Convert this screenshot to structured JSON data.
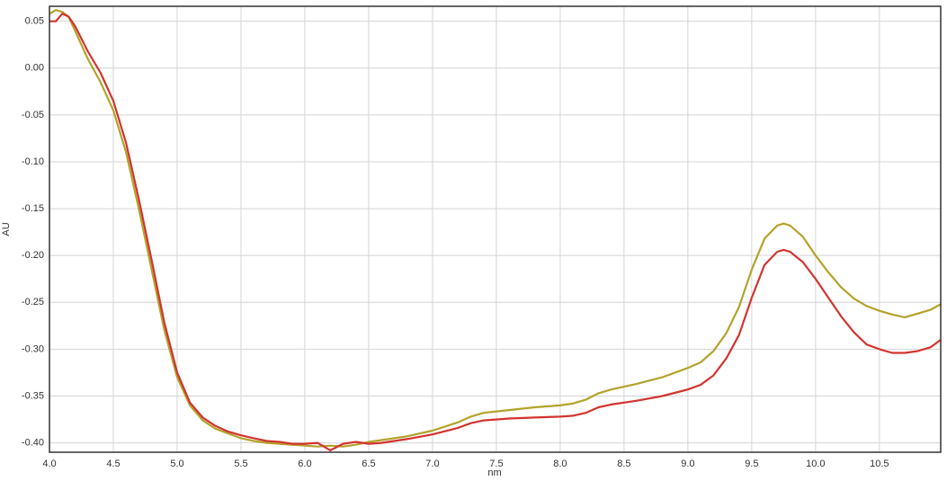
{
  "chart_data": {
    "type": "line",
    "x_label": "nm",
    "y_label": "AU",
    "x": [
      4.0,
      4.05,
      4.1,
      4.15,
      4.2,
      4.3,
      4.4,
      4.5,
      4.6,
      4.7,
      4.8,
      4.9,
      5.0,
      5.1,
      5.2,
      5.3,
      5.4,
      5.5,
      5.6,
      5.7,
      5.8,
      5.9,
      6.0,
      6.1,
      6.2,
      6.3,
      6.4,
      6.5,
      6.6,
      6.8,
      7.0,
      7.2,
      7.3,
      7.4,
      7.6,
      7.8,
      8.0,
      8.1,
      8.2,
      8.3,
      8.4,
      8.6,
      8.8,
      9.0,
      9.1,
      9.2,
      9.3,
      9.4,
      9.5,
      9.6,
      9.7,
      9.75,
      9.8,
      9.9,
      10.0,
      10.1,
      10.2,
      10.3,
      10.4,
      10.5,
      10.6,
      10.7,
      10.8,
      10.9,
      10.98
    ],
    "series": [
      {
        "color": "#b3a32a",
        "values": [
          0.058,
          0.062,
          0.06,
          0.055,
          0.04,
          0.01,
          -0.015,
          -0.045,
          -0.09,
          -0.15,
          -0.215,
          -0.28,
          -0.33,
          -0.36,
          -0.376,
          -0.385,
          -0.39,
          -0.395,
          -0.398,
          -0.4,
          -0.401,
          -0.402,
          -0.403,
          -0.404,
          -0.403,
          -0.404,
          -0.402,
          -0.399,
          -0.397,
          -0.393,
          -0.387,
          -0.378,
          -0.372,
          -0.368,
          -0.365,
          -0.362,
          -0.36,
          -0.358,
          -0.354,
          -0.347,
          -0.343,
          -0.337,
          -0.33,
          -0.32,
          -0.314,
          -0.302,
          -0.283,
          -0.255,
          -0.215,
          -0.182,
          -0.168,
          -0.166,
          -0.168,
          -0.18,
          -0.2,
          -0.218,
          -0.234,
          -0.246,
          -0.254,
          -0.259,
          -0.263,
          -0.266,
          -0.262,
          -0.258,
          -0.252
        ]
      },
      {
        "color": "#d2342f",
        "values": [
          0.05,
          0.05,
          0.058,
          0.055,
          0.045,
          0.018,
          -0.005,
          -0.035,
          -0.08,
          -0.14,
          -0.205,
          -0.272,
          -0.325,
          -0.357,
          -0.373,
          -0.382,
          -0.388,
          -0.392,
          -0.395,
          -0.398,
          -0.399,
          -0.401,
          -0.401,
          -0.4,
          -0.408,
          -0.401,
          -0.399,
          -0.401,
          -0.4,
          -0.396,
          -0.391,
          -0.384,
          -0.379,
          -0.376,
          -0.374,
          -0.373,
          -0.372,
          -0.371,
          -0.368,
          -0.362,
          -0.359,
          -0.355,
          -0.35,
          -0.343,
          -0.338,
          -0.328,
          -0.31,
          -0.285,
          -0.245,
          -0.21,
          -0.196,
          -0.194,
          -0.196,
          -0.207,
          -0.225,
          -0.245,
          -0.265,
          -0.282,
          -0.295,
          -0.3,
          -0.304,
          -0.304,
          -0.302,
          -0.298,
          -0.29
        ]
      }
    ],
    "xlim": [
      4.0,
      10.98
    ],
    "ylim": [
      -0.41,
      0.066
    ],
    "xticks": [
      {
        "value": 4.0,
        "label": "4.0"
      },
      4.5,
      {
        "value": 5.0,
        "label": "5.0"
      },
      5.5,
      {
        "value": 6.0,
        "label": "6.0"
      },
      6.5,
      {
        "value": 7.0,
        "label": "7.0"
      },
      7.5,
      {
        "value": 8.0,
        "label": "8.0"
      },
      8.5,
      {
        "value": 9.0,
        "label": "9.0"
      },
      9.5,
      {
        "value": 10.0,
        "label": "10.0"
      },
      10.5
    ],
    "yticks": [
      0.05,
      {
        "value": 0,
        "label": "0.00"
      },
      -0.05,
      {
        "value": -0.1,
        "label": "-0.10"
      },
      -0.15,
      {
        "value": -0.2,
        "label": "-0.20"
      },
      -0.25,
      {
        "value": -0.3,
        "label": "-0.30"
      },
      -0.35,
      {
        "value": -0.4,
        "label": "-0.40"
      }
    ],
    "grid": true
  }
}
